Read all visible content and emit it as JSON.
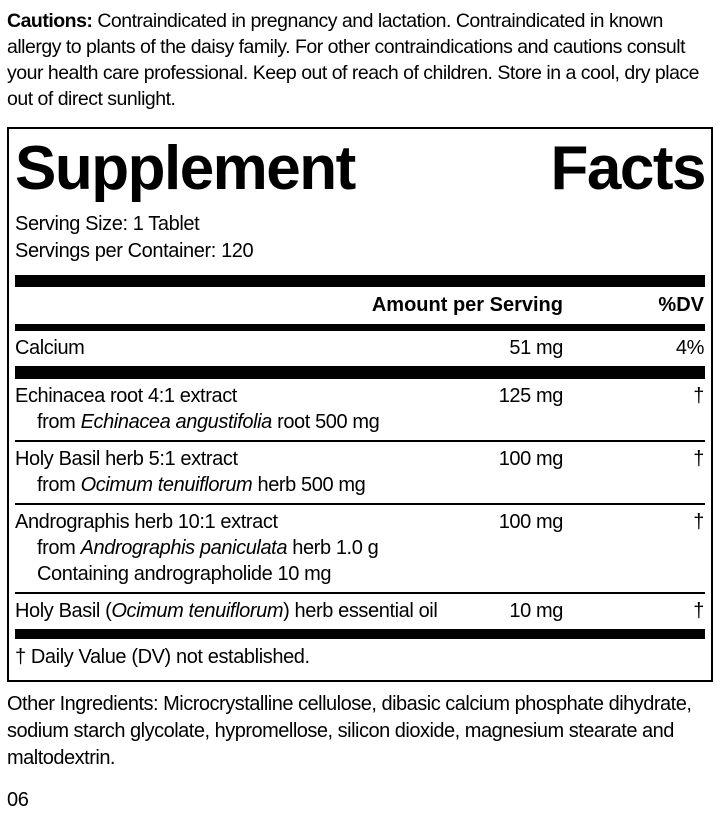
{
  "cautions": {
    "label": "Cautions:",
    "text": "Contraindicated in pregnancy and lactation. Contraindicated in known allergy to plants of the daisy family. For other contraindications and cautions consult your health care professional. Keep out of reach of children. Store in a cool, dry place out of direct sunlight."
  },
  "panel": {
    "title": "Supplement Facts",
    "serving_size": "Serving Size: 1 Tablet",
    "servings_per_container": "Servings per Container: 120",
    "header": {
      "amount": "Amount per Serving",
      "dv": "%DV"
    },
    "calcium_row": {
      "name": [
        {
          "text": "Calcium",
          "italic": false
        }
      ],
      "amount": "51 mg",
      "dv": "4%",
      "sublines": []
    },
    "herb_rows": [
      {
        "name": [
          {
            "text": "Echinacea root 4:1 extract",
            "italic": false
          }
        ],
        "amount": "125 mg",
        "dv": "†",
        "sublines": [
          [
            {
              "text": "from ",
              "italic": false
            },
            {
              "text": "Echinacea angustifolia",
              "italic": true
            },
            {
              "text": " root 500 mg",
              "italic": false
            }
          ]
        ]
      },
      {
        "name": [
          {
            "text": "Holy Basil herb 5:1 extract",
            "italic": false
          }
        ],
        "amount": "100 mg",
        "dv": "†",
        "sublines": [
          [
            {
              "text": "from ",
              "italic": false
            },
            {
              "text": "Ocimum tenuiflorum",
              "italic": true
            },
            {
              "text": " herb 500 mg",
              "italic": false
            }
          ]
        ]
      },
      {
        "name": [
          {
            "text": "Andrographis herb 10:1 extract",
            "italic": false
          }
        ],
        "amount": "100 mg",
        "dv": "†",
        "sublines": [
          [
            {
              "text": "from ",
              "italic": false
            },
            {
              "text": "Andrographis paniculata",
              "italic": true
            },
            {
              "text": " herb 1.0 g",
              "italic": false
            }
          ],
          [
            {
              "text": "Containing andrographolide 10 mg",
              "italic": false
            }
          ]
        ]
      },
      {
        "name": [
          {
            "text": "Holy Basil (",
            "italic": false
          },
          {
            "text": "Ocimum tenuiflorum",
            "italic": true
          },
          {
            "text": ") herb essential oil",
            "italic": false
          }
        ],
        "amount": "10 mg",
        "dv": "†",
        "sublines": []
      }
    ],
    "footnote": "† Daily Value (DV) not established."
  },
  "other_ingredients": "Other Ingredients: Microcrystalline cellulose, dibasic calcium phosphate dihydrate, sodium starch glycolate, hypromellose, silicon dioxide, magnesium stearate and maltodextrin.",
  "footer_code": "06",
  "colors": {
    "ink": "#000000",
    "background": "#ffffff"
  }
}
